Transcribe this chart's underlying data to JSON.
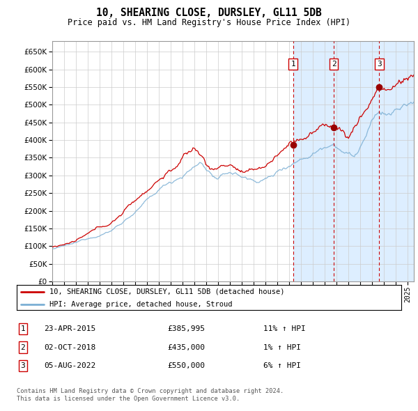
{
  "title": "10, SHEARING CLOSE, DURSLEY, GL11 5DB",
  "subtitle": "Price paid vs. HM Land Registry's House Price Index (HPI)",
  "legend_line1": "10, SHEARING CLOSE, DURSLEY, GL11 5DB (detached house)",
  "legend_line2": "HPI: Average price, detached house, Stroud",
  "footer1": "Contains HM Land Registry data © Crown copyright and database right 2024.",
  "footer2": "This data is licensed under the Open Government Licence v3.0.",
  "transactions": [
    {
      "num": 1,
      "date": "23-APR-2015",
      "price": 385995,
      "pct": "11% ↑ HPI"
    },
    {
      "num": 2,
      "date": "02-OCT-2018",
      "price": 435000,
      "pct": "1% ↑ HPI"
    },
    {
      "num": 3,
      "date": "05-AUG-2022",
      "price": 550000,
      "pct": "6% ↑ HPI"
    }
  ],
  "transaction_dates_decimal": [
    2015.31,
    2018.75,
    2022.59
  ],
  "transaction_prices": [
    385995,
    435000,
    550000
  ],
  "hpi_color": "#7bafd4",
  "price_color": "#cc0000",
  "marker_color": "#990000",
  "vline_color": "#cc0000",
  "shade_color": "#ddeeff",
  "grid_color": "#cccccc",
  "background_color": "#ffffff",
  "ylim": [
    0,
    680000
  ],
  "xlim_start": 1995.0,
  "xlim_end": 2025.5,
  "yticks": [
    0,
    50000,
    100000,
    150000,
    200000,
    250000,
    300000,
    350000,
    400000,
    450000,
    500000,
    550000,
    600000,
    650000
  ]
}
